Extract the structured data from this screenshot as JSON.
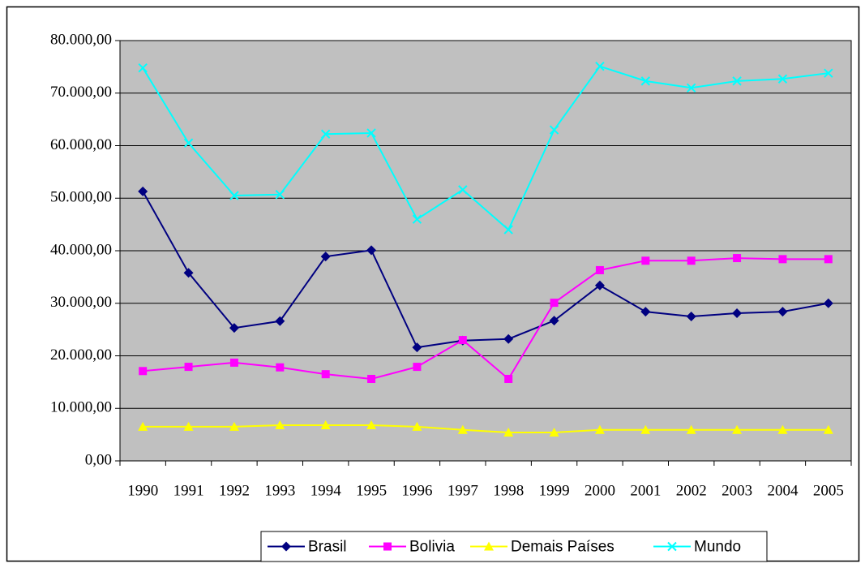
{
  "chart_data": {
    "type": "line",
    "categories": [
      "1990",
      "1991",
      "1992",
      "1993",
      "1994",
      "1995",
      "1996",
      "1997",
      "1998",
      "1999",
      "2000",
      "2001",
      "2002",
      "2003",
      "2004",
      "2005"
    ],
    "series": [
      {
        "name": "Brasil",
        "color": "#000080",
        "marker": "diamond",
        "values": [
          51300,
          35800,
          25300,
          26600,
          38900,
          40100,
          21600,
          22900,
          23200,
          26700,
          33400,
          28400,
          27500,
          28100,
          28400,
          30000
        ]
      },
      {
        "name": "Bolivia",
        "color": "#FF00FF",
        "marker": "square",
        "values": [
          17100,
          17900,
          18700,
          17800,
          16500,
          15600,
          17900,
          23000,
          15600,
          30100,
          36300,
          38100,
          38100,
          38600,
          38400,
          38400
        ]
      },
      {
        "name": "Demais Países",
        "color": "#FFFF00",
        "marker": "triangle",
        "values": [
          6500,
          6500,
          6500,
          6800,
          6800,
          6800,
          6500,
          5900,
          5400,
          5400,
          5900,
          5900,
          5900,
          5900,
          5900,
          5900
        ]
      },
      {
        "name": "Mundo",
        "color": "#00FFFF",
        "marker": "x",
        "values": [
          74800,
          60500,
          50500,
          50700,
          62200,
          62400,
          46000,
          51600,
          44000,
          63000,
          75100,
          72300,
          71000,
          72300,
          72700,
          73800
        ]
      }
    ],
    "ylim": [
      0,
      80000
    ],
    "yticks": [
      {
        "value": 0,
        "label": "0,00"
      },
      {
        "value": 10000,
        "label": "10.000,00"
      },
      {
        "value": 20000,
        "label": "20.000,00"
      },
      {
        "value": 30000,
        "label": "30.000,00"
      },
      {
        "value": 40000,
        "label": "40.000,00"
      },
      {
        "value": 50000,
        "label": "50.000,00"
      },
      {
        "value": 60000,
        "label": "60.000,00"
      },
      {
        "value": 70000,
        "label": "70.000,00"
      },
      {
        "value": 80000,
        "label": "80.000,00"
      }
    ],
    "grid": true,
    "plot_background": "#C0C0C0",
    "legend": "bottom"
  }
}
